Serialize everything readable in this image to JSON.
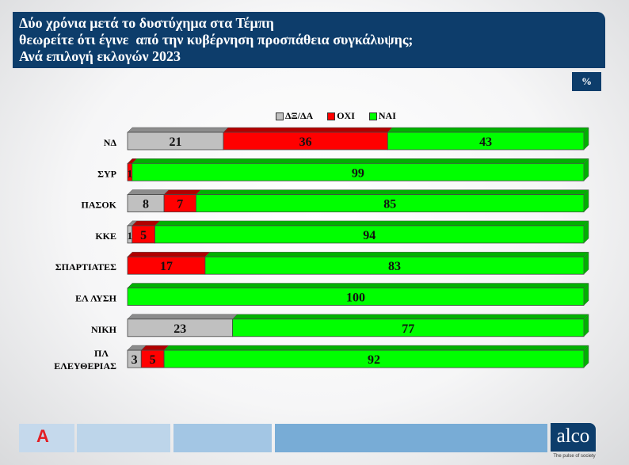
{
  "header": {
    "lines": [
      "Δύο χρόνια μετά το δυστύχημα στα Τέμπη",
      "θεωρείτε ότι έγινε  από την κυβέρνηση προσπάθεια συγκάλυψης;",
      "Ανά επιλογή εκλογών 2023"
    ]
  },
  "unit_badge": "%",
  "footer": {
    "brand_logo": "alco",
    "tagline": "The pulse of society",
    "partner_logo": "A NEWS"
  },
  "colors": {
    "dk": "#c0c0c0",
    "no": "#ff0000",
    "yes": "#00ff00",
    "navy": "#0d3d6b"
  },
  "chart_data": {
    "type": "bar",
    "orientation": "horizontal",
    "stacked": true,
    "xlim": [
      0,
      100
    ],
    "legend": [
      "ΔΞ/ΔΑ",
      "ΟΧΙ",
      "ΝΑΙ"
    ],
    "legend_position": "top",
    "categories": [
      "ΝΔ",
      "ΣΥΡ",
      "ΠΑΣΟΚ",
      "ΚΚΕ",
      "ΣΠΑΡΤΙΑΤΕΣ",
      "ΕΛ ΛΥΣΗ",
      "ΝΙΚΗ",
      "ΠΛ ΕΛΕΥΘΕΡΙΑΣ"
    ],
    "series": [
      {
        "name": "ΔΞ/ΔΑ",
        "values": [
          21,
          0,
          8,
          1,
          0,
          0,
          23,
          3
        ]
      },
      {
        "name": "ΟΧΙ",
        "values": [
          36,
          1,
          7,
          5,
          17,
          0,
          0,
          5
        ]
      },
      {
        "name": "ΝΑΙ",
        "values": [
          43,
          99,
          85,
          94,
          83,
          100,
          77,
          92
        ]
      }
    ]
  }
}
